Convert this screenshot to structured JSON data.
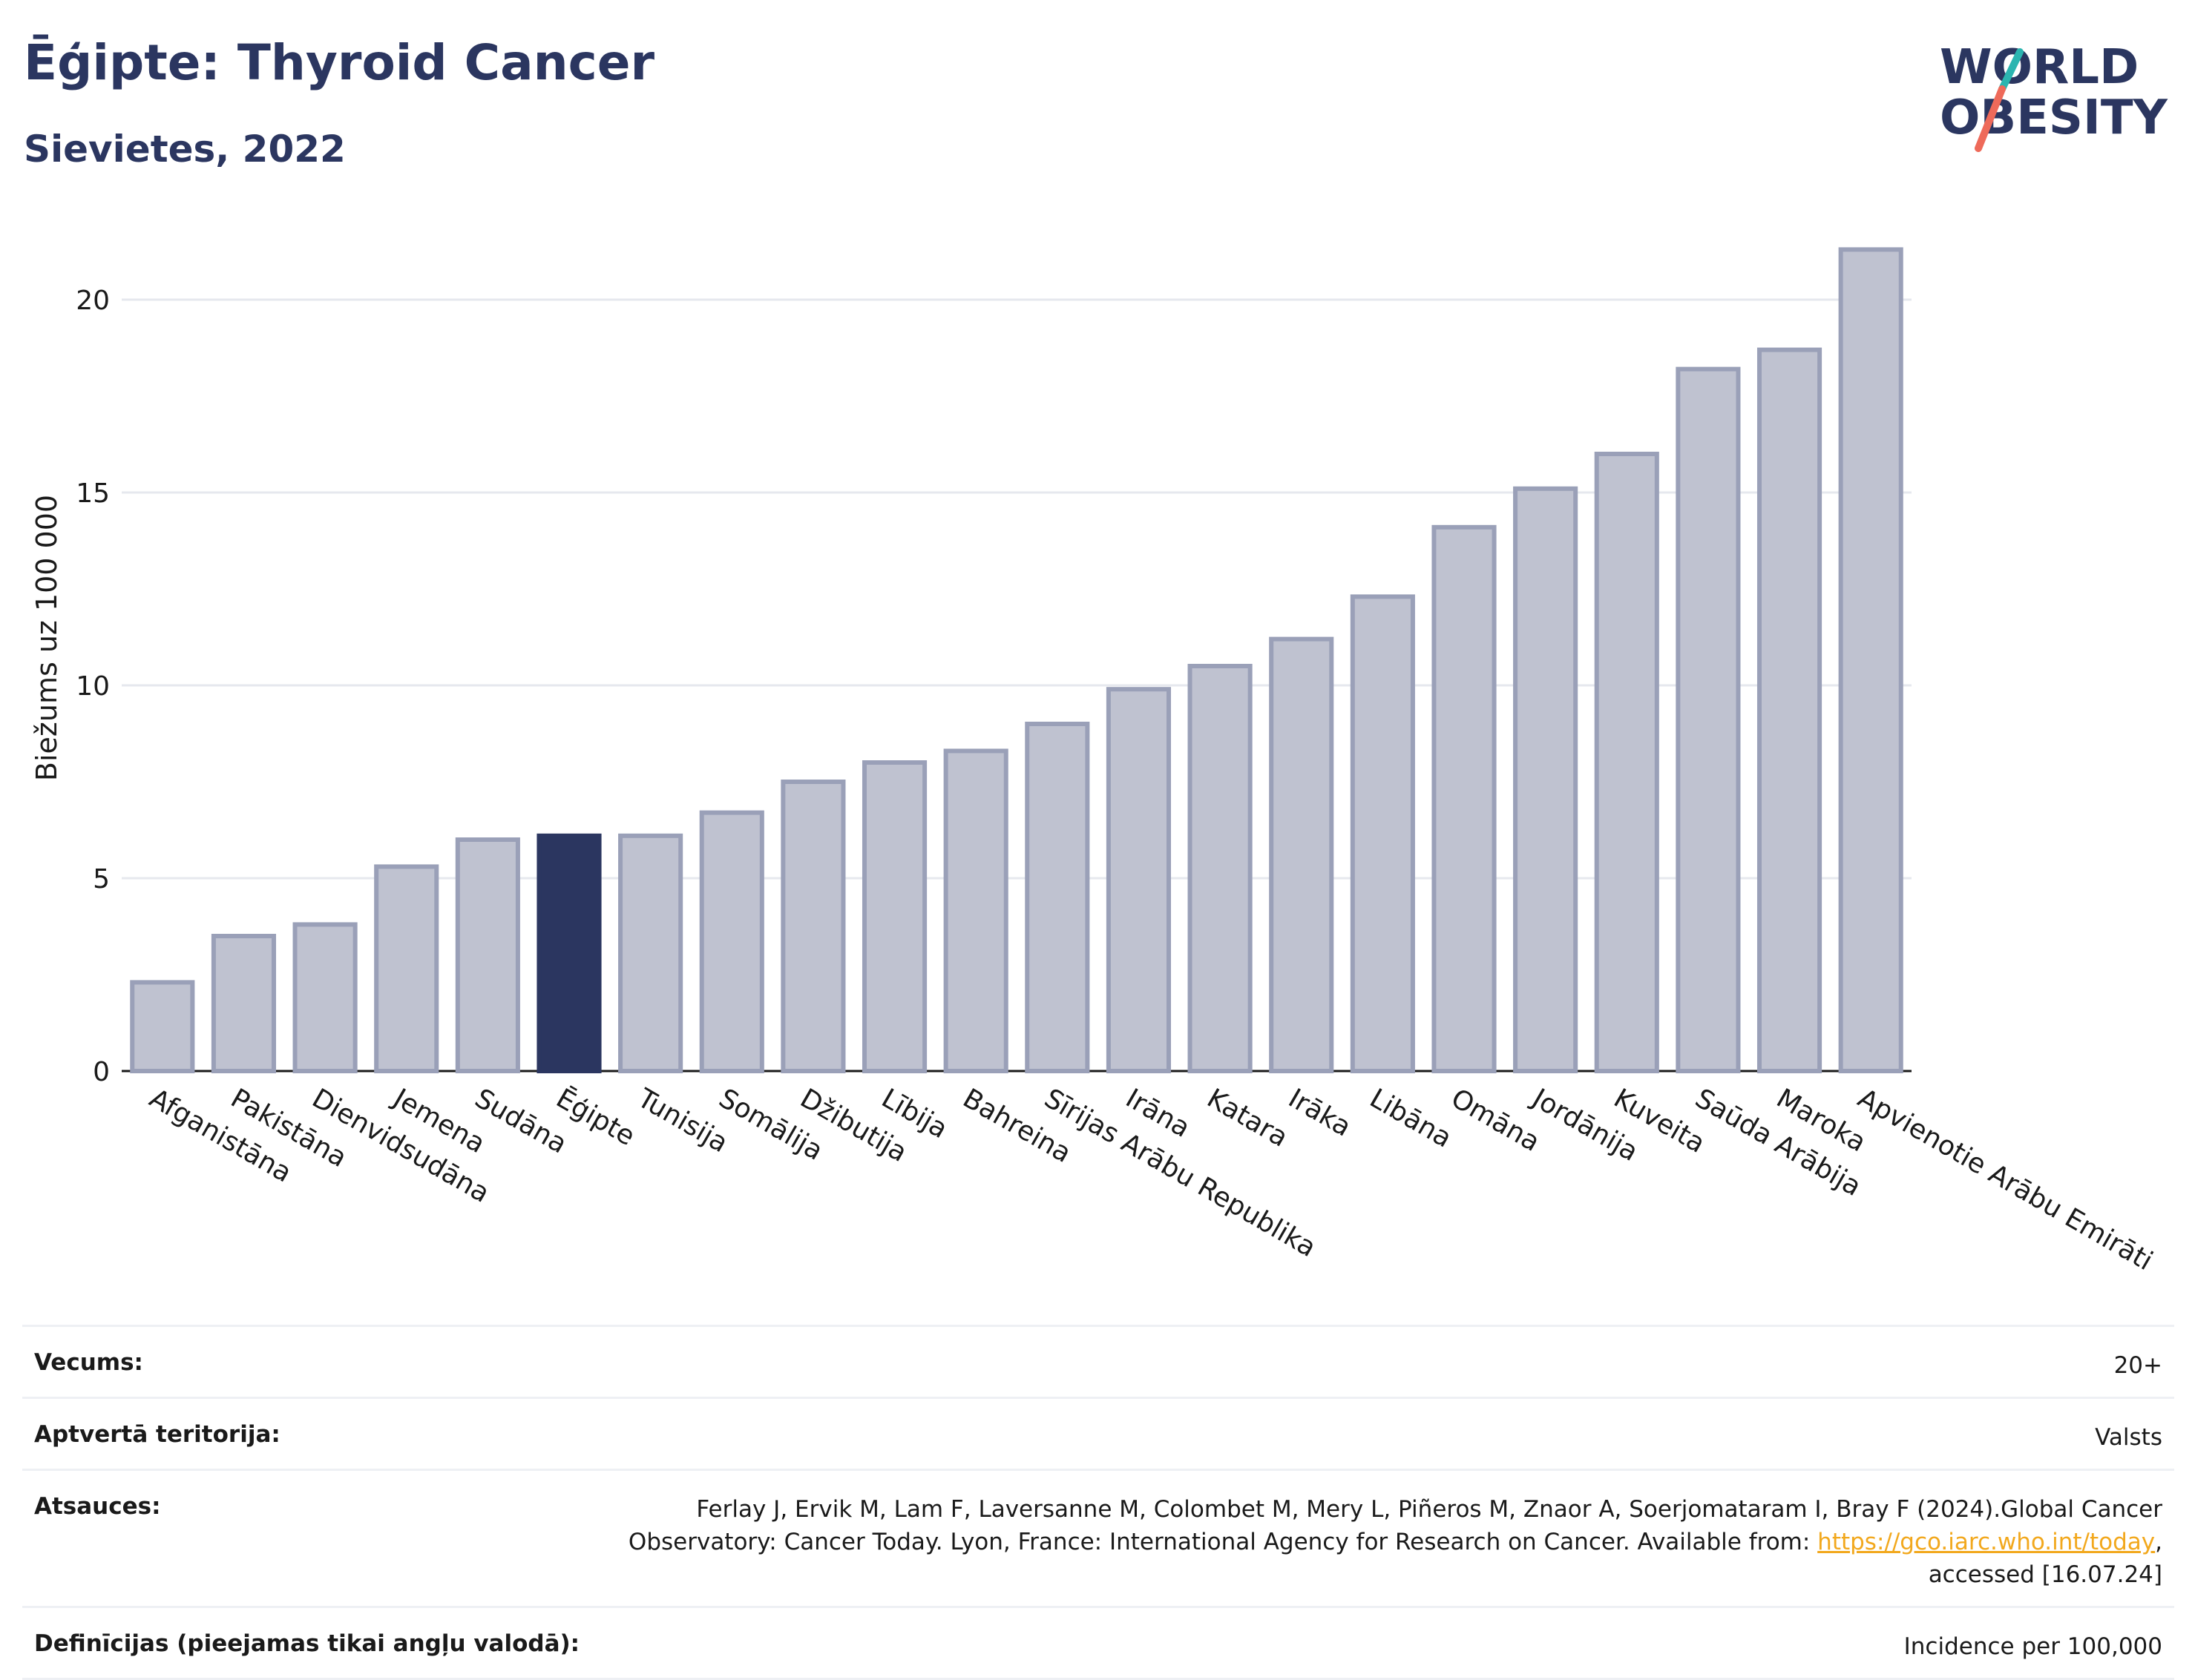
{
  "header": {
    "title": "Ēģipte: Thyroid Cancer",
    "subtitle": "Sievietes, 2022"
  },
  "logo": {
    "line1": "WORLD",
    "line2": "OBESITY"
  },
  "chart_data": {
    "type": "bar",
    "title": "Ēģipte: Thyroid Cancer",
    "subtitle": "Sievietes, 2022",
    "ylabel": "Biežums uz 100 000",
    "xlabel": "",
    "ylim": [
      0,
      22
    ],
    "yticks": [
      0,
      5,
      10,
      15,
      20
    ],
    "grid": true,
    "highlight_category": "Ēģipte",
    "colors": {
      "bar": "#bfc2d0",
      "bar_edge": "#9aa0b8",
      "highlight": "#2b3660"
    },
    "categories": [
      "Afganistāna",
      "Pakistāna",
      "Dienvidsudāna",
      "Jemena",
      "Sudāna",
      "Ēģipte",
      "Tunisija",
      "Somālija",
      "Džibutija",
      "Lībija",
      "Bahreina",
      "Sīrijas Arābu Republika",
      "Irāna",
      "Katara",
      "Irāka",
      "Libāna",
      "Omāna",
      "Jordānija",
      "Kuveita",
      "Saūda Arābija",
      "Maroka",
      "Apvienotie Arābu Emirāti"
    ],
    "values": [
      2.3,
      3.5,
      3.8,
      5.3,
      6.0,
      6.1,
      6.1,
      6.7,
      7.5,
      8.0,
      8.3,
      9.0,
      9.9,
      10.5,
      11.2,
      12.3,
      14.1,
      15.1,
      16.0,
      18.2,
      18.7,
      21.3
    ]
  },
  "info": {
    "age_label": "Vecums:",
    "age_value": "20+",
    "area_label": "Aptvertā teritorija:",
    "area_value": "Valsts",
    "refs_label": "Atsauces:",
    "refs_text1": "Ferlay J, Ervik M, Lam F, Laversanne M, Colombet M, Mery L, Piñeros M, Znaor A, Soerjomataram I, Bray F (2024).Global Cancer Observatory: Cancer Today. Lyon, France: International Agency for Research on Cancer. Available from: ",
    "refs_link": "https://gco.iarc.who.int/today",
    "refs_text2": ", accessed [16.07.24]",
    "defs_label": "Definīcijas (pieejamas tikai angļu valodā):",
    "defs_value": "Incidence per 100,000"
  }
}
